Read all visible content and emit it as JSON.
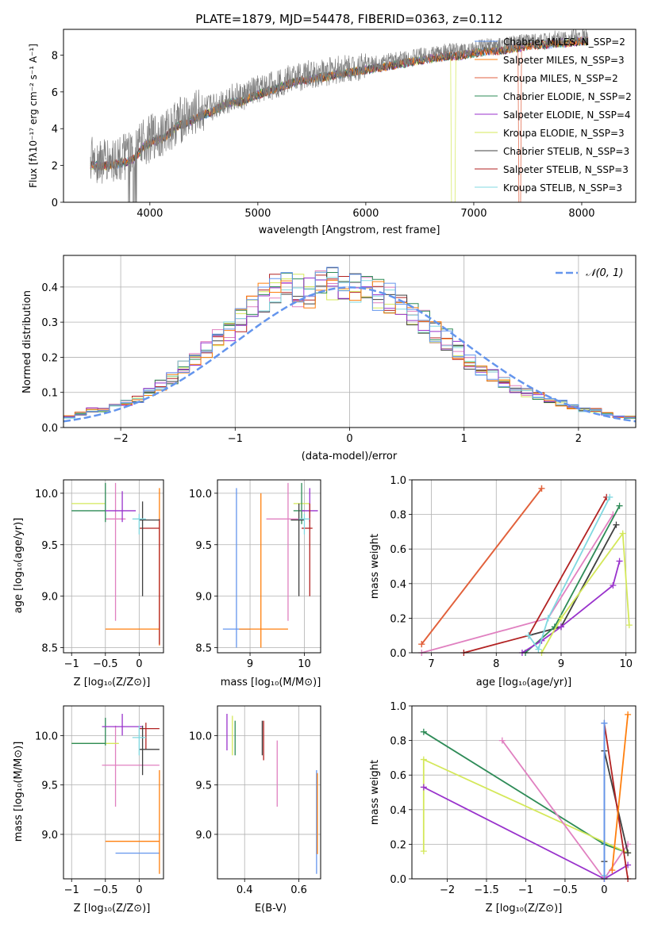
{
  "colors": {
    "series": [
      "#6495ed",
      "#ff7f0e",
      "#2e8b57",
      "#9932cc",
      "#d4e85a",
      "#404040",
      "#b22222",
      "#80d8e0",
      "#808080",
      "#e080c0",
      "#e06040"
    ],
    "normal": "#6495ed",
    "spectrum": "#808080",
    "grid": "#b0b0b0"
  },
  "chart_data": [
    {
      "id": "spectrum",
      "type": "line",
      "title": "PLATE=1879, MJD=54478, FIBERID=0363, z=0.112",
      "xlabel": "wavelength [Angstrom, rest frame]",
      "ylabel": "Flux [fλ10⁻¹⁷ erg cm⁻² s⁻¹ A⁻¹]",
      "xlim": [
        3200,
        8500
      ],
      "ylim": [
        0,
        9.4
      ],
      "xticks": [
        4000,
        5000,
        6000,
        7000,
        8000
      ],
      "yticks": [
        0,
        2,
        4,
        6,
        8
      ],
      "grid": false,
      "legend_position": "top-right",
      "observed_spectrum": {
        "x": [
          3450,
          3550,
          3650,
          3750,
          3850,
          3950,
          4050,
          4150,
          4250,
          4350,
          4450,
          4550,
          4650,
          4750,
          4850,
          4950,
          5050,
          5150,
          5250,
          5350,
          5450,
          5550,
          5650,
          5750,
          5850,
          5950,
          6050,
          6150,
          6250,
          6350,
          6450,
          6550,
          6650,
          6750,
          6850,
          6950,
          7050,
          7150,
          7250,
          7350,
          7450,
          7550,
          7650,
          7750,
          7850,
          7950,
          8050
        ],
        "y": [
          2.3,
          2.2,
          2.3,
          2.4,
          2.6,
          3.3,
          3.6,
          3.8,
          4.4,
          4.6,
          4.9,
          5.1,
          5.4,
          5.7,
          5.7,
          6.0,
          6.2,
          6.4,
          6.6,
          6.8,
          6.9,
          7.0,
          7.1,
          7.2,
          7.3,
          7.4,
          7.5,
          7.6,
          7.7,
          7.8,
          7.9,
          8.0,
          8.1,
          8.2,
          8.2,
          8.3,
          8.4,
          8.5,
          8.5,
          8.6,
          8.7,
          8.8,
          8.8,
          8.9,
          8.9,
          9.0,
          9.0
        ]
      },
      "legend": [
        "Chabrier MILES, N_SSP=2",
        "Salpeter MILES, N_SSP=3",
        "Kroupa MILES, N_SSP=2",
        "Chabrier ELODIE, N_SSP=2",
        "Salpeter ELODIE, N_SSP=4",
        "Kroupa ELODIE, N_SSP=3",
        "Chabrier STELIB, N_SSP=3",
        "Salpeter STELIB, N_SSP=3",
        "Kroupa STELIB, N_SSP=3"
      ]
    },
    {
      "id": "residuals",
      "type": "histogram",
      "xlabel": "(data-model)/error",
      "ylabel": "Normed distribution",
      "xlim": [
        -2.5,
        2.5
      ],
      "ylim": [
        0,
        0.49
      ],
      "xticks": [
        -2,
        -1,
        0,
        1,
        2
      ],
      "yticks": [
        0.0,
        0.1,
        0.2,
        0.3,
        0.4
      ],
      "grid": true,
      "legend": [
        "𝒩(0, 1)"
      ],
      "legend_position": "top-right",
      "bin_edges": [
        -2.5,
        -2.4,
        -2.3,
        -2.2,
        -2.1,
        -2.0,
        -1.9,
        -1.8,
        -1.7,
        -1.6,
        -1.5,
        -1.4,
        -1.3,
        -1.2,
        -1.1,
        -1.0,
        -0.9,
        -0.8,
        -0.7,
        -0.6,
        -0.5,
        -0.4,
        -0.3,
        -0.2,
        -0.1,
        0.0,
        0.1,
        0.2,
        0.3,
        0.4,
        0.5,
        0.6,
        0.7,
        0.8,
        0.9,
        1.0,
        1.1,
        1.2,
        1.3,
        1.4,
        1.5,
        1.6,
        1.7,
        1.8,
        1.9,
        2.0,
        2.1,
        2.2,
        2.3,
        2.4,
        2.5
      ],
      "reference_counts": [
        0.03,
        0.04,
        0.05,
        0.05,
        0.06,
        0.07,
        0.08,
        0.1,
        0.12,
        0.14,
        0.17,
        0.19,
        0.22,
        0.25,
        0.28,
        0.31,
        0.34,
        0.37,
        0.4,
        0.42,
        0.39,
        0.38,
        0.4,
        0.41,
        0.4,
        0.4,
        0.39,
        0.38,
        0.37,
        0.35,
        0.32,
        0.3,
        0.27,
        0.25,
        0.22,
        0.19,
        0.17,
        0.15,
        0.13,
        0.11,
        0.1,
        0.09,
        0.08,
        0.07,
        0.06,
        0.05,
        0.05,
        0.04,
        0.03,
        0.03
      ]
    },
    {
      "id": "age_vs_Z",
      "type": "errorbar",
      "xlabel": "Z [log₁₀(Z/Z⊙)]",
      "ylabel": "age  [log₁₀(age/yr)]",
      "xlim": [
        -1.12,
        0.36
      ],
      "ylim": [
        8.45,
        10.13
      ],
      "xticks": [
        -1.0,
        -0.5,
        0.0
      ],
      "yticks": [
        8.5,
        9.0,
        9.5,
        10.0
      ],
      "grid": true,
      "points": [
        {
          "c": 1,
          "x": 0.3,
          "y": 8.68,
          "xl": -0.5,
          "xh": 0.3,
          "yl": 8.52,
          "yh": 10.05
        },
        {
          "c": 9,
          "x": -0.35,
          "y": 9.75,
          "xl": -0.5,
          "xh": -0.2,
          "yl": 8.76,
          "yh": 10.1
        },
        {
          "c": 4,
          "x": -0.7,
          "y": 9.9,
          "xl": -1.0,
          "xh": -0.5,
          "yl": 9.9,
          "yh": 9.9
        },
        {
          "c": 2,
          "x": -0.5,
          "y": 9.83,
          "xl": -1.0,
          "xh": -0.5,
          "yl": 9.72,
          "yh": 10.1
        },
        {
          "c": 3,
          "x": -0.25,
          "y": 9.83,
          "xl": -0.5,
          "xh": -0.05,
          "yl": 9.72,
          "yh": 10.02
        },
        {
          "c": 6,
          "x": 0.3,
          "y": 9.66,
          "xl": 0.0,
          "xh": 0.3,
          "yl": 8.53,
          "yh": 9.75
        },
        {
          "c": 5,
          "x": 0.05,
          "y": 9.74,
          "xl": 0.0,
          "xh": 0.3,
          "yl": 9.0,
          "yh": 9.92
        },
        {
          "c": 7,
          "x": 0.0,
          "y": 9.75,
          "xl": -0.1,
          "xh": 0.1,
          "yl": 9.6,
          "yh": 9.8
        }
      ]
    },
    {
      "id": "age_vs_mass",
      "type": "errorbar",
      "xlabel": "mass [log₁₀(M/M⊙)]",
      "ylabel": "",
      "xlim": [
        8.4,
        10.3
      ],
      "ylim": [
        8.45,
        10.13
      ],
      "xticks": [
        9,
        10
      ],
      "yticks": [
        8.5,
        9.0,
        9.5,
        10.0
      ],
      "grid": true,
      "points": [
        {
          "c": 0,
          "x": 8.75,
          "y": 8.68,
          "xl": 8.5,
          "xh": 9.0,
          "yl": 8.5,
          "yh": 10.05
        },
        {
          "c": 1,
          "x": 9.2,
          "y": 8.68,
          "xl": 8.8,
          "xh": 9.7,
          "yl": 8.5,
          "yh": 10.0
        },
        {
          "c": 9,
          "x": 9.7,
          "y": 9.75,
          "xl": 9.3,
          "xh": 10.0,
          "yl": 8.76,
          "yh": 10.1
        },
        {
          "c": 4,
          "x": 10.0,
          "y": 9.9,
          "xl": 9.8,
          "xh": 10.1,
          "yl": 9.9,
          "yh": 9.9
        },
        {
          "c": 2,
          "x": 9.95,
          "y": 9.83,
          "xl": 9.8,
          "xh": 10.0,
          "yl": 9.7,
          "yh": 10.1
        },
        {
          "c": 3,
          "x": 10.1,
          "y": 9.83,
          "xl": 9.95,
          "xh": 10.25,
          "yl": 9.72,
          "yh": 10.05
        },
        {
          "c": 6,
          "x": 10.1,
          "y": 9.66,
          "xl": 9.95,
          "xh": 10.15,
          "yl": 9.0,
          "yh": 9.9
        },
        {
          "c": 5,
          "x": 9.9,
          "y": 9.74,
          "xl": 9.75,
          "xh": 10.0,
          "yl": 9.0,
          "yh": 9.9
        },
        {
          "c": 7,
          "x": 10.0,
          "y": 9.75,
          "xl": 9.9,
          "xh": 10.1,
          "yl": 9.6,
          "yh": 9.8
        }
      ]
    },
    {
      "id": "mass_weight_vs_age",
      "type": "line",
      "xlabel": "age  [log₁₀(age/yr)]",
      "ylabel": "mass weight",
      "xlim": [
        6.7,
        10.15
      ],
      "ylim": [
        0,
        1
      ],
      "xticks": [
        7,
        8,
        9,
        10
      ],
      "yticks": [
        0.0,
        0.2,
        0.4,
        0.6,
        0.8,
        1.0
      ],
      "grid": true,
      "series": [
        {
          "c": 1,
          "x": [
            6.85,
            8.7
          ],
          "y": [
            0.05,
            0.95
          ]
        },
        {
          "c": 10,
          "x": [
            6.85,
            8.7
          ],
          "y": [
            0.05,
            0.95
          ]
        },
        {
          "c": 9,
          "x": [
            6.85,
            8.8,
            9.8
          ],
          "y": [
            0.0,
            0.2,
            0.8
          ]
        },
        {
          "c": 6,
          "x": [
            7.5,
            8.5,
            9.7
          ],
          "y": [
            0.0,
            0.1,
            0.9
          ]
        },
        {
          "c": 5,
          "x": [
            8.5,
            9.0,
            9.85
          ],
          "y": [
            0.1,
            0.15,
            0.74
          ]
        },
        {
          "c": 2,
          "x": [
            8.45,
            8.9,
            9.9
          ],
          "y": [
            0.0,
            0.15,
            0.85
          ]
        },
        {
          "c": 3,
          "x": [
            8.4,
            8.7,
            9.0,
            9.8,
            9.9
          ],
          "y": [
            0.0,
            0.07,
            0.15,
            0.39,
            0.53
          ]
        },
        {
          "c": 4,
          "x": [
            8.7,
            9.0,
            9.95,
            10.05
          ],
          "y": [
            0.0,
            0.2,
            0.69,
            0.16
          ]
        },
        {
          "c": 7,
          "x": [
            8.5,
            8.65,
            8.8,
            9.75
          ],
          "y": [
            0.1,
            0.02,
            0.2,
            0.9
          ]
        }
      ]
    },
    {
      "id": "mass_vs_Z",
      "type": "errorbar",
      "xlabel": "Z [log₁₀(Z/Z⊙)]",
      "ylabel": "mass [log₁₀(M/M⊙)]",
      "xlim": [
        -1.12,
        0.36
      ],
      "ylim": [
        8.55,
        10.3
      ],
      "xticks": [
        -1.0,
        -0.5,
        0.0
      ],
      "yticks": [
        9.0,
        9.5,
        10.0
      ],
      "grid": true,
      "points": [
        {
          "c": 0,
          "x": -0.1,
          "y": 8.81,
          "xl": -0.35,
          "xh": 0.3,
          "yl": 8.81,
          "yh": 8.81
        },
        {
          "c": 1,
          "x": 0.3,
          "y": 8.93,
          "xl": -0.5,
          "xh": 0.3,
          "yl": 8.6,
          "yh": 9.65
        },
        {
          "c": 9,
          "x": -0.35,
          "y": 9.7,
          "xl": -0.55,
          "xh": 0.3,
          "yl": 9.28,
          "yh": 10.1
        },
        {
          "c": 4,
          "x": -0.7,
          "y": 9.92,
          "xl": -1.0,
          "xh": -0.3,
          "yl": 9.92,
          "yh": 9.92
        },
        {
          "c": 2,
          "x": -0.5,
          "y": 9.92,
          "xl": -1.0,
          "xh": -0.5,
          "yl": 9.9,
          "yh": 10.18
        },
        {
          "c": 3,
          "x": -0.25,
          "y": 10.09,
          "xl": -0.55,
          "xh": 0.05,
          "yl": 10.0,
          "yh": 10.22
        },
        {
          "c": 6,
          "x": 0.1,
          "y": 10.07,
          "xl": 0.0,
          "xh": 0.3,
          "yl": 9.86,
          "yh": 10.13
        },
        {
          "c": 5,
          "x": 0.05,
          "y": 9.86,
          "xl": 0.0,
          "xh": 0.3,
          "yl": 9.6,
          "yh": 10.1
        },
        {
          "c": 7,
          "x": 0.0,
          "y": 9.98,
          "xl": -0.1,
          "xh": 0.1,
          "yl": 9.8,
          "yh": 10.1
        }
      ]
    },
    {
      "id": "mass_vs_ebv",
      "type": "errorbar",
      "xlabel": "E(B-V)",
      "ylabel": "",
      "xlim": [
        0.3,
        0.68
      ],
      "ylim": [
        8.55,
        10.3
      ],
      "xticks": [
        0.4,
        0.6
      ],
      "yticks": [
        9.0,
        9.5,
        10.0
      ],
      "grid": true,
      "points": [
        {
          "c": 3,
          "x": 0.335,
          "y": 10.0,
          "xl": 0.335,
          "xh": 0.335,
          "yl": 9.85,
          "yh": 10.22
        },
        {
          "c": 4,
          "x": 0.355,
          "y": 10.0,
          "xl": 0.355,
          "xh": 0.355,
          "yl": 9.8,
          "yh": 10.2
        },
        {
          "c": 2,
          "x": 0.365,
          "y": 10.0,
          "xl": 0.365,
          "xh": 0.365,
          "yl": 9.8,
          "yh": 10.15
        },
        {
          "c": 5,
          "x": 0.465,
          "y": 10.0,
          "xl": 0.465,
          "xh": 0.465,
          "yl": 9.8,
          "yh": 10.15
        },
        {
          "c": 6,
          "x": 0.47,
          "y": 9.95,
          "xl": 0.47,
          "xh": 0.47,
          "yl": 9.75,
          "yh": 10.15
        },
        {
          "c": 9,
          "x": 0.52,
          "y": 9.6,
          "xl": 0.52,
          "xh": 0.52,
          "yl": 9.28,
          "yh": 9.95
        },
        {
          "c": 0,
          "x": 0.665,
          "y": 9.3,
          "xl": 0.665,
          "xh": 0.665,
          "yl": 8.6,
          "yh": 9.65
        },
        {
          "c": 1,
          "x": 0.668,
          "y": 9.2,
          "xl": 0.668,
          "xh": 0.668,
          "yl": 8.8,
          "yh": 9.62
        }
      ]
    },
    {
      "id": "mass_weight_vs_Z",
      "type": "line",
      "xlabel": "Z [log₁₀(Z/Z⊙)]",
      "ylabel": "mass weight",
      "xlim": [
        -2.45,
        0.4
      ],
      "ylim": [
        0,
        1
      ],
      "xticks": [
        -2.0,
        -1.5,
        -1.0,
        -0.5,
        0.0
      ],
      "yticks": [
        0.0,
        0.2,
        0.4,
        0.6,
        0.8,
        1.0
      ],
      "grid": true,
      "series": [
        {
          "c": 2,
          "x": [
            -2.3,
            0.0,
            0.3
          ],
          "y": [
            0.85,
            0.2,
            0.15
          ]
        },
        {
          "c": 4,
          "x": [
            -2.3,
            -2.3,
            0.3
          ],
          "y": [
            0.16,
            0.69,
            0.15
          ]
        },
        {
          "c": 3,
          "x": [
            -2.3,
            0.0,
            0.3
          ],
          "y": [
            0.53,
            0.0,
            0.08
          ]
        },
        {
          "c": 9,
          "x": [
            -1.3,
            0.0,
            0.3
          ],
          "y": [
            0.8,
            0.0,
            0.2
          ]
        },
        {
          "c": 5,
          "x": [
            0.0,
            0.0,
            0.3
          ],
          "y": [
            0.1,
            0.74,
            0.15
          ]
        },
        {
          "c": 6,
          "x": [
            0.0,
            0.0,
            0.3
          ],
          "y": [
            0.0,
            0.9,
            0.0
          ]
        },
        {
          "c": 7,
          "x": [
            0.0,
            0.0
          ],
          "y": [
            0.02,
            0.9
          ]
        },
        {
          "c": 1,
          "x": [
            0.1,
            0.3
          ],
          "y": [
            0.05,
            0.95
          ]
        },
        {
          "c": 0,
          "x": [
            0.0,
            0.0
          ],
          "y": [
            0.0,
            0.9
          ]
        }
      ]
    }
  ]
}
